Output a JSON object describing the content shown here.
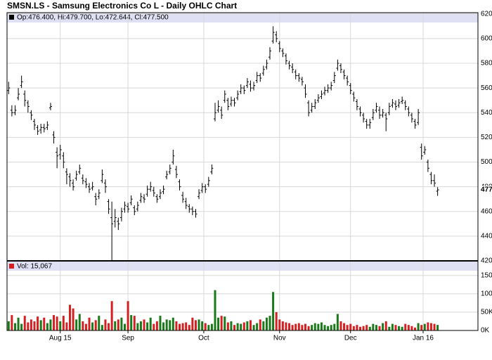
{
  "chart_data": [
    {
      "type": "ohlc",
      "title": "SMSN.LS - Samsung Electronics Co L - Daily OHLC Chart",
      "legend": "Op:476.400, Hi:479.700, Lo:472.644, Cl:477.500",
      "last_label": "477.500",
      "color": "#000000",
      "xlim": [
        -0.5,
        145.5
      ],
      "ylim": [
        420,
        621
      ],
      "yticks": [
        {
          "value": 420,
          "label": "420.000"
        },
        {
          "value": 440,
          "label": "440.000"
        },
        {
          "value": 460,
          "label": "460.000"
        },
        {
          "value": 480,
          "label": "480.000"
        },
        {
          "value": 500,
          "label": "500.000"
        },
        {
          "value": 520,
          "label": "520.000"
        },
        {
          "value": 540,
          "label": "540.000"
        },
        {
          "value": 560,
          "label": "560.000"
        },
        {
          "value": 580,
          "label": "580.000"
        },
        {
          "value": 600,
          "label": "600.000"
        },
        {
          "value": 620,
          "label": "620.000"
        }
      ],
      "grid": true,
      "ohlc": [
        [
          558,
          565,
          555,
          560
        ],
        [
          542,
          546,
          537,
          540
        ],
        [
          540,
          546,
          538,
          542
        ],
        [
          552,
          560,
          550,
          555
        ],
        [
          562,
          570,
          560,
          565
        ],
        [
          555,
          558,
          545,
          550
        ],
        [
          548,
          550,
          540,
          545
        ],
        [
          540,
          542,
          534,
          538
        ],
        [
          533,
          535,
          526,
          530
        ],
        [
          528,
          530,
          522,
          525
        ],
        [
          526,
          531,
          523,
          528
        ],
        [
          528,
          531,
          524,
          527
        ],
        [
          528,
          533,
          526,
          530
        ],
        [
          544,
          548,
          542,
          545
        ],
        [
          522,
          525,
          515,
          520
        ],
        [
          508,
          512,
          495,
          505
        ],
        [
          506,
          514,
          502,
          510
        ],
        [
          505,
          508,
          495,
          500
        ],
        [
          492,
          495,
          482,
          490
        ],
        [
          488,
          491,
          480,
          485
        ],
        [
          483,
          486,
          477,
          480
        ],
        [
          487,
          493,
          485,
          490
        ],
        [
          492,
          498,
          490,
          495
        ],
        [
          487,
          490,
          482,
          485
        ],
        [
          484,
          487,
          479,
          482
        ],
        [
          480,
          483,
          475,
          478
        ],
        [
          479,
          484,
          477,
          480
        ],
        [
          472,
          475,
          465,
          470
        ],
        [
          472,
          478,
          470,
          475
        ],
        [
          485,
          494,
          483,
          490
        ],
        [
          483,
          486,
          475,
          480
        ],
        [
          468,
          470,
          458,
          462
        ],
        [
          455,
          468,
          420,
          450
        ],
        [
          452,
          462,
          447,
          455
        ],
        [
          452,
          455,
          445,
          450
        ],
        [
          455,
          463,
          452,
          460
        ],
        [
          462,
          468,
          459,
          465
        ],
        [
          464,
          467,
          459,
          462
        ],
        [
          467,
          473,
          465,
          470
        ],
        [
          463,
          465,
          457,
          460
        ],
        [
          462,
          468,
          460,
          465
        ],
        [
          469,
          475,
          467,
          472
        ],
        [
          471,
          474,
          467,
          470
        ],
        [
          474,
          481,
          472,
          478
        ],
        [
          478,
          484,
          476,
          480
        ],
        [
          477,
          480,
          472,
          475
        ],
        [
          472,
          474,
          467,
          470
        ],
        [
          472,
          478,
          470,
          475
        ],
        [
          476,
          481,
          474,
          478
        ],
        [
          488,
          493,
          486,
          490
        ],
        [
          492,
          498,
          490,
          495
        ],
        [
          500,
          510,
          498,
          505
        ],
        [
          494,
          497,
          487,
          490
        ],
        [
          484,
          486,
          477,
          480
        ],
        [
          473,
          476,
          467,
          470
        ],
        [
          468,
          471,
          462,
          465
        ],
        [
          464,
          466,
          459,
          462
        ],
        [
          462,
          464,
          457,
          460
        ],
        [
          460,
          462,
          455,
          458
        ],
        [
          472,
          478,
          470,
          475
        ],
        [
          477,
          483,
          475,
          480
        ],
        [
          480,
          482,
          475,
          478
        ],
        [
          482,
          488,
          480,
          485
        ],
        [
          492,
          498,
          490,
          495
        ],
        [
          535,
          548,
          533,
          540
        ],
        [
          542,
          550,
          540,
          545
        ],
        [
          542,
          545,
          535,
          538
        ],
        [
          550,
          558,
          548,
          555
        ],
        [
          550,
          552,
          542,
          545
        ],
        [
          547,
          553,
          545,
          550
        ],
        [
          550,
          552,
          545,
          548
        ],
        [
          552,
          558,
          550,
          555
        ],
        [
          557,
          563,
          555,
          560
        ],
        [
          560,
          562,
          555,
          558
        ],
        [
          562,
          568,
          560,
          565
        ],
        [
          563,
          566,
          557,
          560
        ],
        [
          560,
          565,
          558,
          562
        ],
        [
          566,
          573,
          564,
          570
        ],
        [
          570,
          572,
          565,
          568
        ],
        [
          572,
          578,
          570,
          575
        ],
        [
          577,
          583,
          575,
          580
        ],
        [
          585,
          593,
          583,
          590
        ],
        [
          598,
          610,
          596,
          605
        ],
        [
          603,
          606,
          597,
          600
        ],
        [
          596,
          598,
          589,
          592
        ],
        [
          590,
          592,
          585,
          588
        ],
        [
          586,
          588,
          579,
          582
        ],
        [
          580,
          582,
          575,
          578
        ],
        [
          577,
          580,
          572,
          575
        ],
        [
          573,
          575,
          567,
          570
        ],
        [
          570,
          572,
          565,
          568
        ],
        [
          567,
          569,
          562,
          565
        ],
        [
          560,
          563,
          552,
          555
        ],
        [
          548,
          550,
          537,
          540
        ],
        [
          542,
          548,
          540,
          545
        ],
        [
          545,
          551,
          543,
          548
        ],
        [
          550,
          555,
          548,
          552
        ],
        [
          553,
          558,
          551,
          555
        ],
        [
          556,
          561,
          554,
          558
        ],
        [
          558,
          563,
          556,
          560
        ],
        [
          560,
          565,
          558,
          562
        ],
        [
          566,
          573,
          564,
          570
        ],
        [
          576,
          583,
          574,
          580
        ],
        [
          578,
          580,
          572,
          575
        ],
        [
          573,
          575,
          567,
          570
        ],
        [
          568,
          570,
          562,
          565
        ],
        [
          562,
          564,
          555,
          558
        ],
        [
          555,
          557,
          549,
          552
        ],
        [
          549,
          551,
          542,
          545
        ],
        [
          543,
          545,
          537,
          540
        ],
        [
          538,
          540,
          532,
          535
        ],
        [
          533,
          535,
          527,
          530
        ],
        [
          530,
          535,
          527,
          532
        ],
        [
          536,
          543,
          534,
          540
        ],
        [
          542,
          548,
          540,
          545
        ],
        [
          542,
          545,
          535,
          538
        ],
        [
          538,
          543,
          536,
          540
        ],
        [
          538,
          540,
          525,
          535
        ],
        [
          540,
          548,
          538,
          545
        ],
        [
          546,
          551,
          544,
          548
        ],
        [
          547,
          550,
          542,
          545
        ],
        [
          546,
          551,
          544,
          548
        ],
        [
          549,
          553,
          547,
          550
        ],
        [
          548,
          550,
          542,
          545
        ],
        [
          543,
          545,
          537,
          540
        ],
        [
          538,
          540,
          532,
          535
        ],
        [
          533,
          535,
          527,
          530
        ],
        [
          532,
          543,
          530,
          540
        ],
        [
          512,
          515,
          502,
          505
        ],
        [
          508,
          513,
          506,
          510
        ],
        [
          500,
          502,
          492,
          495
        ],
        [
          490,
          492,
          482,
          485
        ],
        [
          485,
          490,
          480,
          483
        ],
        [
          476.4,
          479.7,
          472.644,
          477.5
        ]
      ]
    },
    {
      "type": "bar",
      "legend": "Vol: 15,067",
      "up_color": "#1a7a1a",
      "down_color": "#d42020",
      "xlim": [
        -0.5,
        145.5
      ],
      "xticks": [
        {
          "value": 16,
          "label": "Aug 15"
        },
        {
          "value": 37,
          "label": "Sep"
        },
        {
          "value": 60.5,
          "label": "Oct"
        },
        {
          "value": 84,
          "label": "Nov"
        },
        {
          "value": 106,
          "label": "Dec"
        },
        {
          "value": 128.5,
          "label": "Jan 16"
        }
      ],
      "ylim": [
        0,
        186000
      ],
      "yticks": [
        {
          "value": 0,
          "label": "0K"
        },
        {
          "value": 50000,
          "label": "50K"
        },
        {
          "value": 100000,
          "label": "100K"
        },
        {
          "value": 150000,
          "label": "150K"
        }
      ],
      "grid": true,
      "values": [
        25000,
        42000,
        20000,
        35000,
        18000,
        40000,
        22000,
        30000,
        25000,
        38000,
        28000,
        35000,
        20000,
        30000,
        42000,
        38000,
        25000,
        40000,
        22000,
        70000,
        60000,
        30000,
        45000,
        25000,
        18000,
        35000,
        22000,
        28000,
        40000,
        15000,
        30000,
        20000,
        80000,
        25000,
        30000,
        35000,
        18000,
        80000,
        42000,
        40000,
        20000,
        25000,
        30000,
        22000,
        35000,
        18000,
        25000,
        40000,
        22000,
        30000,
        28000,
        35000,
        25000,
        18000,
        20000,
        22000,
        15000,
        35000,
        28000,
        30000,
        25000,
        20000,
        15000,
        18000,
        110000,
        35000,
        40000,
        38000,
        22000,
        25000,
        15000,
        20000,
        18000,
        22000,
        25000,
        28000,
        15000,
        20000,
        30000,
        25000,
        35000,
        40000,
        105000,
        50000,
        30000,
        25000,
        22000,
        20000,
        15000,
        18000,
        20000,
        15000,
        18000,
        12000,
        15000,
        20000,
        18000,
        22000,
        15000,
        12000,
        15000,
        18000,
        45000,
        25000,
        20000,
        15000,
        18000,
        12000,
        15000,
        10000,
        12000,
        15000,
        10000,
        18000,
        15000,
        12000,
        20000,
        25000,
        10000,
        18000,
        15000,
        12000,
        10000,
        18000,
        15000,
        12000,
        8000,
        20000,
        15000,
        18000,
        22000,
        20000,
        18000,
        15067
      ]
    }
  ]
}
